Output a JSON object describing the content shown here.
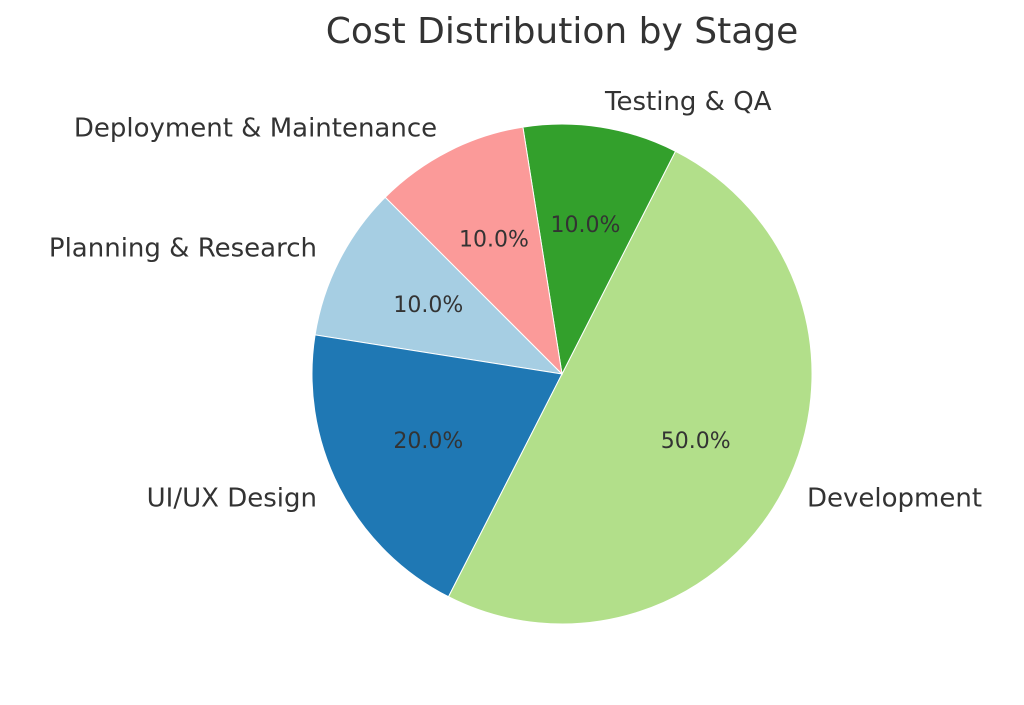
{
  "chart_data": {
    "type": "pie",
    "title": "Cost Distribution by Stage",
    "start_angle_deg": 135,
    "direction": "counterclockwise",
    "slices": [
      {
        "label": "Planning & Research",
        "value": 10.0,
        "pct_label": "10.0%",
        "color": "#a6cee3"
      },
      {
        "label": "UI/UX Design",
        "value": 20.0,
        "pct_label": "20.0%",
        "color": "#1f78b4"
      },
      {
        "label": "Development",
        "value": 50.0,
        "pct_label": "50.0%",
        "color": "#b2df8a"
      },
      {
        "label": "Testing & QA",
        "value": 10.0,
        "pct_label": "10.0%",
        "color": "#33a02c"
      },
      {
        "label": "Deployment & Maintenance",
        "value": 10.0,
        "pct_label": "10.0%",
        "color": "#fb9a99"
      }
    ]
  }
}
